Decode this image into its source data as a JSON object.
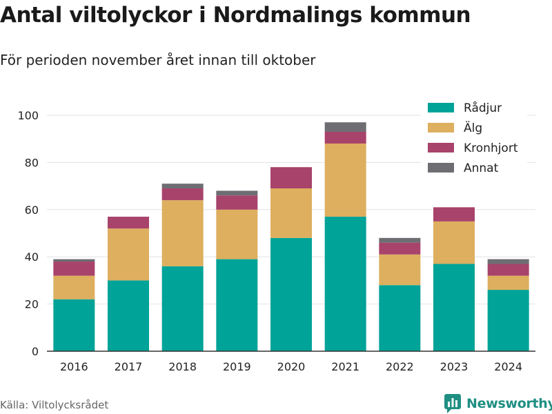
{
  "header": {
    "title": "Antal viltolyckor i Nordmalings kommun",
    "subtitle": "För perioden november året innan till oktober"
  },
  "footer": {
    "source": "Källa: Viltolycksrådet",
    "brand": "Newsworthy"
  },
  "colors": {
    "Rådjur": "#00A398",
    "Älg": "#DDAF5F",
    "Kronhjort": "#A8436B",
    "Annat": "#6D6D72",
    "brand": "#1f8f82"
  },
  "chart_data": {
    "type": "bar",
    "stacked": true,
    "categories": [
      "2016",
      "2017",
      "2018",
      "2019",
      "2020",
      "2021",
      "2022",
      "2023",
      "2024"
    ],
    "series": [
      {
        "name": "Rådjur",
        "values": [
          22,
          30,
          36,
          39,
          48,
          57,
          28,
          37,
          26
        ]
      },
      {
        "name": "Älg",
        "values": [
          10,
          22,
          28,
          21,
          21,
          31,
          13,
          18,
          6
        ]
      },
      {
        "name": "Kronhjort",
        "values": [
          6,
          5,
          5,
          6,
          9,
          5,
          5,
          6,
          5
        ]
      },
      {
        "name": "Annat",
        "values": [
          1,
          0,
          2,
          2,
          0,
          4,
          2,
          0,
          2
        ]
      }
    ],
    "ylim": [
      0,
      100
    ],
    "yticks": [
      0,
      20,
      40,
      60,
      80,
      100
    ],
    "grid": true,
    "legend": "top-right"
  }
}
